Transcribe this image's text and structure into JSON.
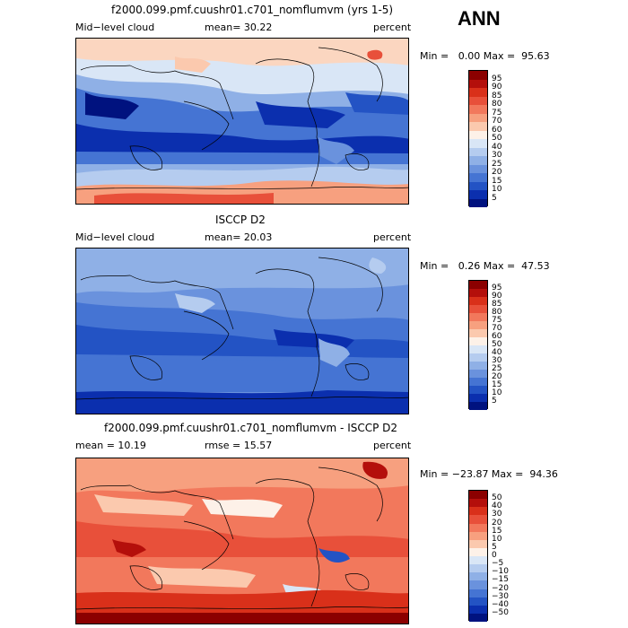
{
  "header": {
    "season": "ANN"
  },
  "panels": [
    {
      "title": "f2000.099.pmf.cuushr01.c701_nomflumvm (yrs 1-5)",
      "left_label": "Mid−level cloud",
      "mean_label": "mean=  30.22",
      "units": "percent",
      "minmax": "Min =   0.00 Max =  95.63",
      "colorbar_ticks": [
        "95",
        "90",
        "85",
        "80",
        "75",
        "70",
        "60",
        "50",
        "40",
        "30",
        "25",
        "20",
        "15",
        "10",
        "5"
      ]
    },
    {
      "title": "ISCCP D2",
      "left_label": "Mid−level cloud",
      "mean_label": "mean=  20.03",
      "units": "percent",
      "minmax": "Min =   0.26 Max =  47.53",
      "colorbar_ticks": [
        "95",
        "90",
        "85",
        "80",
        "75",
        "70",
        "60",
        "50",
        "40",
        "30",
        "25",
        "20",
        "15",
        "10",
        "5"
      ]
    },
    {
      "title": "f2000.099.pmf.cuushr01.c701_nomflumvm - ISCCP D2",
      "left_label": "mean =  10.19",
      "mean_label": "rmse =  15.57",
      "units": "percent",
      "minmax": "Min = −23.87 Max =  94.36",
      "colorbar_ticks": [
        "50",
        "40",
        "30",
        "20",
        "15",
        "10",
        "5",
        "0",
        "−5",
        "−10",
        "−15",
        "−20",
        "−30",
        "−40",
        "−50"
      ]
    }
  ],
  "colors": {
    "abs_scale": [
      "#8b0000",
      "#b40f0b",
      "#d9301a",
      "#e8503a",
      "#f2785c",
      "#f7a07f",
      "#fbc9ae",
      "#fdf1e8",
      "#d9e6f6",
      "#b5ccef",
      "#8fb0e6",
      "#6a92dd",
      "#4574d3",
      "#2353c4",
      "#0b2fae",
      "#00127f"
    ],
    "diff_scale": [
      "#8b0000",
      "#b40f0b",
      "#d9301a",
      "#e8503a",
      "#f2785c",
      "#f7a07f",
      "#fbc9ae",
      "#fdf1e8",
      "#d9e6f6",
      "#b5ccef",
      "#8fb0e6",
      "#6a92dd",
      "#4574d3",
      "#2353c4",
      "#0b2fae",
      "#00127f"
    ]
  }
}
